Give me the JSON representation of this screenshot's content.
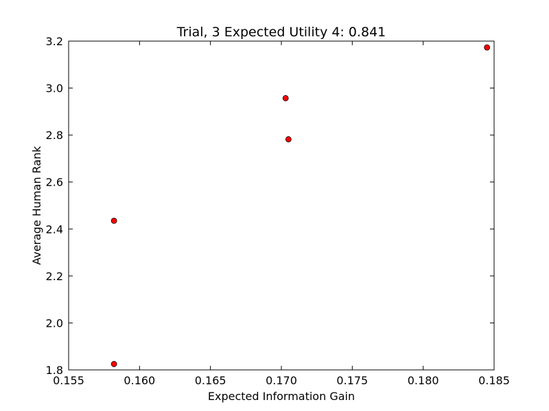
{
  "chart_data": {
    "type": "scatter",
    "title": "Trial, 3 Expected Utility 4: 0.841",
    "xlabel": "Expected Information Gain",
    "ylabel": "Average Human Rank",
    "xlim": [
      0.155,
      0.185
    ],
    "ylim": [
      1.8,
      3.2
    ],
    "xticks": [
      "0.155",
      "0.160",
      "0.165",
      "0.170",
      "0.175",
      "0.180",
      "0.185"
    ],
    "yticks": [
      "1.8",
      "2.0",
      "2.2",
      "2.4",
      "2.6",
      "2.8",
      "3.0",
      "3.2"
    ],
    "grid": false,
    "marker_color": "#ff0000",
    "marker_edge_color": "#000000",
    "points": [
      {
        "x": 0.1582,
        "y": 1.825
      },
      {
        "x": 0.1582,
        "y": 2.435
      },
      {
        "x": 0.1703,
        "y": 2.957
      },
      {
        "x": 0.1705,
        "y": 2.782
      },
      {
        "x": 0.1845,
        "y": 3.173
      }
    ]
  }
}
